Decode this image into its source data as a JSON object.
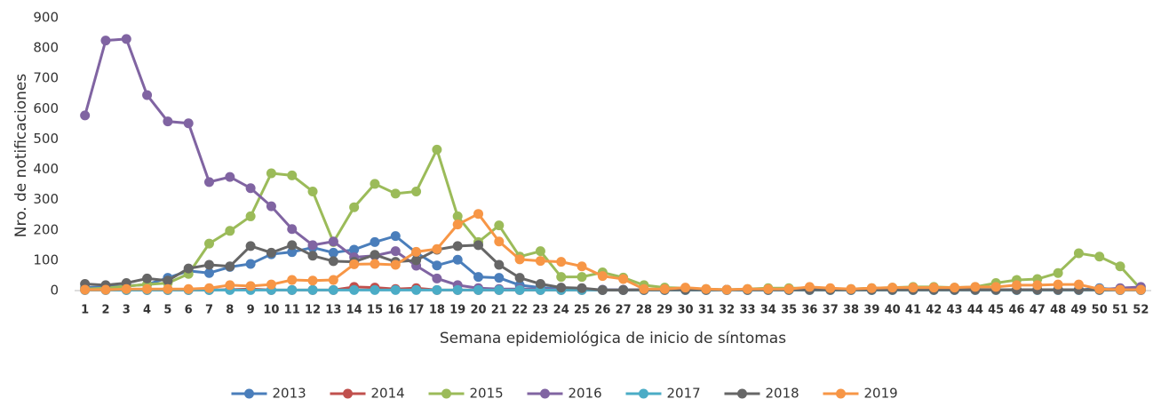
{
  "chart_data": {
    "type": "line",
    "y_label": "Nro. de notificaciones",
    "x_label": "Semana epidemiológica de inicio de síntomas",
    "categories": [
      "1",
      "2",
      "3",
      "4",
      "5",
      "6",
      "7",
      "8",
      "9",
      "10",
      "11",
      "12",
      "13",
      "14",
      "15",
      "16",
      "17",
      "18",
      "19",
      "20",
      "21",
      "22",
      "23",
      "24",
      "25",
      "26",
      "27",
      "28",
      "29",
      "30",
      "31",
      "32",
      "33",
      "34",
      "35",
      "36",
      "37",
      "38",
      "39",
      "40",
      "41",
      "42",
      "43",
      "44",
      "45",
      "46",
      "47",
      "48",
      "49",
      "50",
      "51",
      "52"
    ],
    "ylim": [
      0,
      900
    ],
    "yticks": [
      0,
      100,
      200,
      300,
      400,
      500,
      600,
      700,
      800,
      900
    ],
    "grid": false,
    "legend": "bottom",
    "series": [
      {
        "name": "2013",
        "color": "#4a7ebb",
        "values": [
          10,
          12,
          15,
          20,
          42,
          65,
          58,
          78,
          88,
          120,
          127,
          142,
          125,
          135,
          160,
          180,
          125,
          83,
          102,
          45,
          42,
          18,
          10,
          5,
          3,
          2,
          2,
          2,
          2,
          2,
          2,
          2,
          2,
          2,
          2,
          2,
          2,
          2,
          2,
          2,
          2,
          2,
          2,
          2,
          2,
          2,
          2,
          2,
          2,
          8,
          2,
          2
        ]
      },
      {
        "name": "2014",
        "color": "#c0504d",
        "values": [
          2,
          2,
          2,
          2,
          2,
          2,
          2,
          3,
          5,
          2,
          2,
          2,
          2,
          12,
          10,
          5,
          8,
          2,
          2,
          2,
          2,
          2,
          2,
          2,
          2,
          2,
          2,
          2,
          2,
          2,
          2,
          2,
          2,
          2,
          2,
          2,
          2,
          2,
          2,
          2,
          2,
          2,
          2,
          2,
          2,
          2,
          2,
          2,
          2,
          2,
          2,
          2
        ]
      },
      {
        "name": "2015",
        "color": "#9bbb59",
        "values": [
          5,
          8,
          15,
          20,
          25,
          55,
          155,
          197,
          245,
          387,
          380,
          327,
          160,
          275,
          352,
          320,
          327,
          465,
          245,
          160,
          215,
          112,
          130,
          45,
          45,
          60,
          43,
          18,
          10,
          8,
          5,
          3,
          5,
          8,
          8,
          8,
          5,
          5,
          8,
          10,
          12,
          12,
          10,
          12,
          25,
          35,
          38,
          58,
          123,
          112,
          80,
          5
        ]
      },
      {
        "name": "2016",
        "color": "#8064a2",
        "values": [
          578,
          825,
          830,
          645,
          558,
          552,
          358,
          375,
          338,
          278,
          203,
          150,
          162,
          110,
          115,
          130,
          82,
          40,
          18,
          8,
          5,
          5,
          5,
          3,
          3,
          3,
          3,
          3,
          3,
          3,
          3,
          3,
          3,
          3,
          3,
          3,
          3,
          3,
          3,
          3,
          3,
          3,
          3,
          3,
          3,
          3,
          3,
          3,
          3,
          3,
          8,
          12
        ]
      },
      {
        "name": "2017",
        "color": "#4bacc6",
        "values": [
          2,
          2,
          2,
          2,
          2,
          2,
          2,
          2,
          2,
          2,
          2,
          2,
          2,
          2,
          2,
          2,
          2,
          2,
          2,
          2,
          2,
          2,
          2,
          2,
          2,
          2,
          2,
          2,
          2,
          2,
          2,
          2,
          2,
          2,
          2,
          2,
          2,
          2,
          2,
          2,
          2,
          2,
          2,
          2,
          2,
          2,
          2,
          2,
          2,
          2,
          2,
          2
        ]
      },
      {
        "name": "2018",
        "color": "#666666",
        "values": [
          22,
          18,
          25,
          40,
          33,
          73,
          85,
          80,
          147,
          125,
          150,
          115,
          97,
          95,
          118,
          95,
          100,
          135,
          147,
          150,
          85,
          42,
          22,
          10,
          8,
          2,
          2,
          3,
          3,
          3,
          3,
          3,
          3,
          3,
          3,
          3,
          3,
          3,
          3,
          3,
          3,
          3,
          3,
          3,
          3,
          3,
          3,
          3,
          3,
          3,
          3,
          3
        ]
      },
      {
        "name": "2019",
        "color": "#f79646",
        "values": [
          3,
          3,
          5,
          5,
          5,
          5,
          8,
          18,
          15,
          20,
          35,
          33,
          35,
          87,
          88,
          85,
          128,
          137,
          218,
          253,
          162,
          103,
          98,
          95,
          80,
          48,
          38,
          5,
          5,
          10,
          5,
          3,
          5,
          5,
          5,
          12,
          8,
          5,
          8,
          10,
          10,
          10,
          10,
          12,
          12,
          18,
          18,
          20,
          20,
          5,
          3,
          3
        ]
      }
    ]
  }
}
